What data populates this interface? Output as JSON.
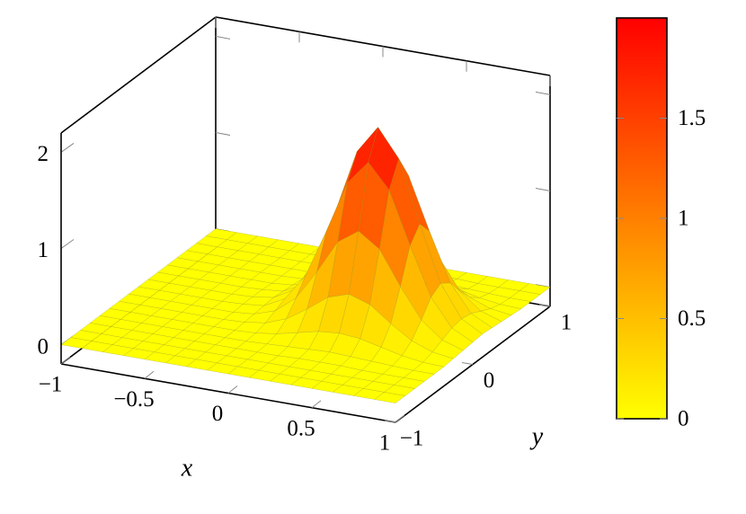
{
  "chart_data": {
    "type": "surface",
    "x_label": "x",
    "y_label": "y",
    "x": [
      -1,
      -0.875,
      -0.75,
      -0.625,
      -0.5,
      -0.375,
      -0.25,
      -0.125,
      0,
      0.125,
      0.25,
      0.375,
      0.5,
      0.625,
      0.75,
      0.875,
      1
    ],
    "y": [
      -1,
      -0.875,
      -0.75,
      -0.625,
      -0.5,
      -0.375,
      -0.25,
      -0.125,
      0,
      0.125,
      0.25,
      0.375,
      0.5,
      0.625,
      0.75,
      0.875,
      1
    ],
    "z": [
      [
        0,
        0,
        0,
        0,
        0,
        0,
        0,
        0,
        0,
        0,
        0,
        0,
        0,
        0,
        0,
        0,
        0
      ],
      [
        0,
        0,
        0,
        0,
        0,
        0,
        0,
        0,
        0,
        0,
        0,
        0,
        0,
        0,
        0,
        0,
        0
      ],
      [
        0,
        0,
        0,
        0,
        0,
        0,
        0,
        0,
        0,
        0,
        0,
        0,
        0,
        0,
        0,
        0,
        0
      ],
      [
        0,
        0,
        0,
        0,
        0,
        0,
        0,
        0,
        0,
        0,
        0.01,
        0.01,
        0.01,
        0,
        0,
        0,
        0
      ],
      [
        0,
        0,
        0,
        0,
        0,
        0,
        0,
        0,
        0.01,
        0.02,
        0.03,
        0.04,
        0.03,
        0.02,
        0.01,
        0,
        0
      ],
      [
        0,
        0,
        0,
        0,
        0,
        0,
        0,
        0.01,
        0.04,
        0.09,
        0.14,
        0.16,
        0.14,
        0.09,
        0.04,
        0.01,
        0
      ],
      [
        0,
        0,
        0,
        0,
        0,
        0,
        0.01,
        0.04,
        0.12,
        0.26,
        0.42,
        0.49,
        0.42,
        0.26,
        0.12,
        0.04,
        0.01
      ],
      [
        0,
        0,
        0,
        0,
        0,
        0,
        0.02,
        0.09,
        0.26,
        0.57,
        0.92,
        1.07,
        0.92,
        0.57,
        0.26,
        0.09,
        0.02
      ],
      [
        0,
        0,
        0,
        0,
        0,
        0.01,
        0.03,
        0.14,
        0.42,
        0.92,
        1.46,
        1.71,
        1.46,
        0.92,
        0.42,
        0.14,
        0.03
      ],
      [
        0,
        0,
        0,
        0,
        0,
        0.01,
        0.04,
        0.16,
        0.49,
        1.07,
        1.71,
        2,
        1.71,
        1.07,
        0.49,
        0.16,
        0.04
      ],
      [
        0,
        0,
        0,
        0,
        0,
        0.01,
        0.03,
        0.14,
        0.42,
        0.92,
        1.46,
        1.71,
        1.46,
        0.92,
        0.42,
        0.14,
        0.03
      ],
      [
        0,
        0,
        0,
        0,
        0,
        0,
        0.02,
        0.09,
        0.26,
        0.57,
        0.92,
        1.07,
        0.92,
        0.57,
        0.26,
        0.09,
        0.02
      ],
      [
        0,
        0,
        0,
        0,
        0,
        0,
        0.01,
        0.04,
        0.12,
        0.26,
        0.42,
        0.49,
        0.42,
        0.26,
        0.12,
        0.04,
        0.01
      ],
      [
        0,
        0,
        0,
        0,
        0,
        0,
        0,
        0.01,
        0.04,
        0.09,
        0.14,
        0.16,
        0.14,
        0.09,
        0.04,
        0.01,
        0
      ],
      [
        0,
        0,
        0,
        0,
        0,
        0,
        0,
        0,
        0.01,
        0.02,
        0.03,
        0.04,
        0.03,
        0.02,
        0.01,
        0,
        0
      ],
      [
        0,
        0,
        0,
        0,
        0,
        0,
        0,
        0,
        0,
        0,
        0.01,
        0.01,
        0.01,
        0,
        0,
        0,
        0
      ],
      [
        0,
        0,
        0,
        0,
        0,
        0,
        0,
        0,
        0,
        0,
        0,
        0,
        0,
        0,
        0,
        0,
        0
      ]
    ],
    "xlim": [
      -1,
      1
    ],
    "ylim": [
      -1,
      1
    ],
    "zlim": [
      -0.2,
      2.2
    ],
    "xticks": [
      {
        "value": -1,
        "label": "−1"
      },
      {
        "value": -0.5,
        "label": "−0.5"
      },
      0,
      0.5,
      1
    ],
    "yticks": [
      {
        "value": -1,
        "label": "−1"
      },
      0,
      1
    ],
    "zticks": [
      0,
      1,
      2
    ],
    "colormap": [
      "#ffff00",
      "#ff0000"
    ],
    "colorbar_lim": [
      0,
      2
    ],
    "colorbar_ticks": [
      0,
      0.5,
      1,
      1.5
    ]
  }
}
